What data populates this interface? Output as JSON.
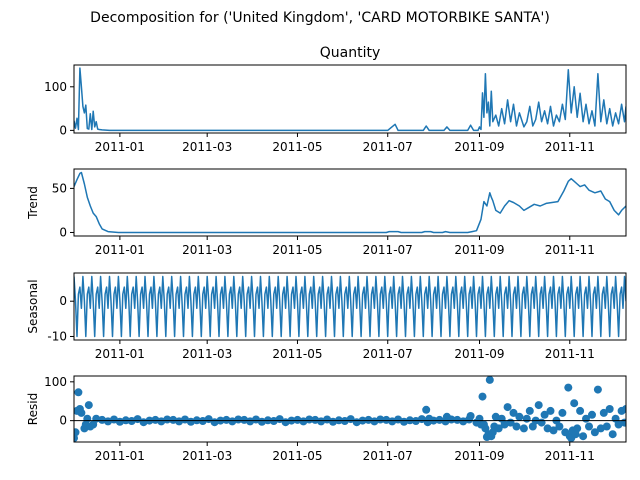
{
  "figure": {
    "suptitle": "Decomposition for ('United Kingdom', 'CARD MOTORBIKE SANTA')"
  },
  "chart_data": [
    {
      "type": "line",
      "title": "Quantity",
      "ylabel": "",
      "xlabel": "",
      "xlim": [
        "2010-12-01",
        "2011-12-09"
      ],
      "ylim": [
        -6,
        150
      ],
      "y_ticks": [
        0,
        100
      ],
      "x_ticks": [
        "2011-01",
        "2011-03",
        "2011-05",
        "2011-07",
        "2011-09",
        "2011-11"
      ],
      "color": "#1f77b4",
      "grid": false,
      "points": [
        [
          "2010-12-01",
          22
        ],
        [
          "2010-12-02",
          5
        ],
        [
          "2010-12-03",
          28
        ],
        [
          "2010-12-04",
          2
        ],
        [
          "2010-12-05",
          143
        ],
        [
          "2010-12-06",
          100
        ],
        [
          "2010-12-07",
          55
        ],
        [
          "2010-12-08",
          40
        ],
        [
          "2010-12-09",
          58
        ],
        [
          "2010-12-10",
          4
        ],
        [
          "2010-12-11",
          3
        ],
        [
          "2010-12-12",
          38
        ],
        [
          "2010-12-13",
          2
        ],
        [
          "2010-12-14",
          44
        ],
        [
          "2010-12-15",
          8
        ],
        [
          "2010-12-16",
          20
        ],
        [
          "2010-12-17",
          3
        ],
        [
          "2010-12-18",
          2
        ],
        [
          "2010-12-20",
          1
        ],
        [
          "2010-12-25",
          0
        ],
        [
          "2011-01-15",
          0
        ],
        [
          "2011-02-15",
          0
        ],
        [
          "2011-03-15",
          0
        ],
        [
          "2011-04-15",
          0
        ],
        [
          "2011-05-15",
          0
        ],
        [
          "2011-06-15",
          0
        ],
        [
          "2011-07-01",
          0
        ],
        [
          "2011-07-06",
          14
        ],
        [
          "2011-07-08",
          0
        ],
        [
          "2011-07-25",
          0
        ],
        [
          "2011-07-27",
          10
        ],
        [
          "2011-07-29",
          0
        ],
        [
          "2011-08-08",
          0
        ],
        [
          "2011-08-10",
          8
        ],
        [
          "2011-08-12",
          0
        ],
        [
          "2011-08-24",
          0
        ],
        [
          "2011-08-26",
          12
        ],
        [
          "2011-08-28",
          0
        ],
        [
          "2011-08-31",
          0
        ],
        [
          "2011-09-01",
          8
        ],
        [
          "2011-09-02",
          2
        ],
        [
          "2011-09-03",
          86
        ],
        [
          "2011-09-04",
          30
        ],
        [
          "2011-09-05",
          130
        ],
        [
          "2011-09-06",
          40
        ],
        [
          "2011-09-07",
          65
        ],
        [
          "2011-09-08",
          10
        ],
        [
          "2011-09-09",
          90
        ],
        [
          "2011-09-10",
          20
        ],
        [
          "2011-09-12",
          35
        ],
        [
          "2011-09-14",
          10
        ],
        [
          "2011-09-16",
          50
        ],
        [
          "2011-09-18",
          15
        ],
        [
          "2011-09-20",
          70
        ],
        [
          "2011-09-22",
          20
        ],
        [
          "2011-09-24",
          60
        ],
        [
          "2011-09-26",
          10
        ],
        [
          "2011-09-28",
          40
        ],
        [
          "2011-10-01",
          8
        ],
        [
          "2011-10-03",
          20
        ],
        [
          "2011-10-05",
          55
        ],
        [
          "2011-10-07",
          10
        ],
        [
          "2011-10-09",
          25
        ],
        [
          "2011-10-11",
          65
        ],
        [
          "2011-10-13",
          20
        ],
        [
          "2011-10-15",
          45
        ],
        [
          "2011-10-17",
          15
        ],
        [
          "2011-10-19",
          55
        ],
        [
          "2011-10-21",
          10
        ],
        [
          "2011-10-23",
          35
        ],
        [
          "2011-10-25",
          20
        ],
        [
          "2011-10-27",
          60
        ],
        [
          "2011-10-29",
          25
        ],
        [
          "2011-10-31",
          139
        ],
        [
          "2011-11-02",
          40
        ],
        [
          "2011-11-04",
          100
        ],
        [
          "2011-11-06",
          30
        ],
        [
          "2011-11-08",
          85
        ],
        [
          "2011-11-10",
          20
        ],
        [
          "2011-11-12",
          60
        ],
        [
          "2011-11-14",
          15
        ],
        [
          "2011-11-16",
          45
        ],
        [
          "2011-11-18",
          10
        ],
        [
          "2011-11-20",
          130
        ],
        [
          "2011-11-22",
          20
        ],
        [
          "2011-11-24",
          70
        ],
        [
          "2011-11-26",
          15
        ],
        [
          "2011-11-28",
          50
        ],
        [
          "2011-11-30",
          10
        ],
        [
          "2011-12-02",
          40
        ],
        [
          "2011-12-04",
          15
        ],
        [
          "2011-12-06",
          60
        ],
        [
          "2011-12-08",
          20
        ],
        [
          "2011-12-09",
          55
        ]
      ]
    },
    {
      "type": "line",
      "title": "",
      "ylabel": "Trend",
      "xlabel": "",
      "xlim": [
        "2010-12-01",
        "2011-12-09"
      ],
      "ylim": [
        -4,
        72
      ],
      "y_ticks": [
        0,
        50
      ],
      "x_ticks": [
        "2011-01",
        "2011-03",
        "2011-05",
        "2011-07",
        "2011-09",
        "2011-11"
      ],
      "color": "#1f77b4",
      "grid": false,
      "points": [
        [
          "2010-12-01",
          52
        ],
        [
          "2010-12-03",
          60
        ],
        [
          "2010-12-05",
          67
        ],
        [
          "2010-12-06",
          68
        ],
        [
          "2010-12-08",
          55
        ],
        [
          "2010-12-10",
          40
        ],
        [
          "2010-12-12",
          30
        ],
        [
          "2010-12-14",
          22
        ],
        [
          "2010-12-16",
          18
        ],
        [
          "2010-12-18",
          10
        ],
        [
          "2010-12-20",
          4
        ],
        [
          "2010-12-24",
          1
        ],
        [
          "2010-12-31",
          0
        ],
        [
          "2011-02-01",
          0
        ],
        [
          "2011-04-01",
          0
        ],
        [
          "2011-06-01",
          0
        ],
        [
          "2011-06-30",
          0
        ],
        [
          "2011-07-02",
          1
        ],
        [
          "2011-07-08",
          1
        ],
        [
          "2011-07-10",
          0
        ],
        [
          "2011-07-24",
          0
        ],
        [
          "2011-07-26",
          1
        ],
        [
          "2011-07-30",
          1
        ],
        [
          "2011-08-01",
          0
        ],
        [
          "2011-08-07",
          0
        ],
        [
          "2011-08-09",
          1
        ],
        [
          "2011-08-12",
          0
        ],
        [
          "2011-08-24",
          0
        ],
        [
          "2011-08-27",
          1
        ],
        [
          "2011-08-30",
          2
        ],
        [
          "2011-09-02",
          15
        ],
        [
          "2011-09-04",
          35
        ],
        [
          "2011-09-06",
          30
        ],
        [
          "2011-09-08",
          45
        ],
        [
          "2011-09-09",
          40
        ],
        [
          "2011-09-10",
          36
        ],
        [
          "2011-09-12",
          25
        ],
        [
          "2011-09-15",
          22
        ],
        [
          "2011-09-18",
          30
        ],
        [
          "2011-09-21",
          36
        ],
        [
          "2011-09-24",
          34
        ],
        [
          "2011-09-28",
          30
        ],
        [
          "2011-10-01",
          25
        ],
        [
          "2011-10-04",
          28
        ],
        [
          "2011-10-08",
          32
        ],
        [
          "2011-10-12",
          30
        ],
        [
          "2011-10-16",
          33
        ],
        [
          "2011-10-20",
          34
        ],
        [
          "2011-10-24",
          35
        ],
        [
          "2011-10-28",
          47
        ],
        [
          "2011-10-31",
          58
        ],
        [
          "2011-11-02",
          61
        ],
        [
          "2011-11-04",
          58
        ],
        [
          "2011-11-06",
          55
        ],
        [
          "2011-11-08",
          52
        ],
        [
          "2011-11-11",
          54
        ],
        [
          "2011-11-14",
          48
        ],
        [
          "2011-11-18",
          45
        ],
        [
          "2011-11-22",
          47
        ],
        [
          "2011-11-25",
          38
        ],
        [
          "2011-11-28",
          35
        ],
        [
          "2011-12-01",
          25
        ],
        [
          "2011-12-04",
          20
        ],
        [
          "2011-12-06",
          25
        ],
        [
          "2011-12-09",
          30
        ]
      ]
    },
    {
      "type": "line",
      "title": "",
      "ylabel": "Seasonal",
      "xlabel": "",
      "xlim": [
        "2010-12-01",
        "2011-12-09"
      ],
      "ylim": [
        -11,
        8
      ],
      "y_ticks": [
        -10,
        0
      ],
      "x_ticks": [
        "2011-01",
        "2011-03",
        "2011-05",
        "2011-07",
        "2011-09",
        "2011-11"
      ],
      "color": "#1f77b4",
      "grid": false,
      "start": "2010-12-01",
      "end": "2011-12-09",
      "period_days": 6,
      "pattern": [
        7,
        0,
        -10,
        2,
        4,
        -2
      ]
    },
    {
      "type": "scatter",
      "title": "",
      "ylabel": "Resid",
      "xlabel": "",
      "xlim": [
        "2010-12-01",
        "2011-12-09"
      ],
      "ylim": [
        -55,
        115
      ],
      "y_ticks": [
        0,
        100
      ],
      "x_ticks": [
        "2011-01",
        "2011-03",
        "2011-05",
        "2011-07",
        "2011-09",
        "2011-11"
      ],
      "color": "#1f77b4",
      "grid": false,
      "zero_line": true,
      "baseline_range": [
        "2010-12-20",
        "2011-08-28"
      ],
      "baseline_step_days": 4,
      "baseline_values": [
        2,
        -2,
        3,
        -3,
        1,
        -1,
        4,
        -4,
        0,
        2,
        -2,
        3
      ],
      "points": [
        [
          "2010-12-01",
          -45
        ],
        [
          "2010-12-02",
          -30
        ],
        [
          "2010-12-03",
          25
        ],
        [
          "2010-12-04",
          73
        ],
        [
          "2010-12-05",
          30
        ],
        [
          "2010-12-06",
          20
        ],
        [
          "2010-12-08",
          -20
        ],
        [
          "2010-12-09",
          -10
        ],
        [
          "2010-12-10",
          5
        ],
        [
          "2010-12-11",
          40
        ],
        [
          "2010-12-12",
          -15
        ],
        [
          "2010-12-14",
          -10
        ],
        [
          "2010-12-16",
          5
        ],
        [
          "2011-07-27",
          28
        ],
        [
          "2011-07-29",
          5
        ],
        [
          "2011-08-10",
          10
        ],
        [
          "2011-08-26",
          12
        ],
        [
          "2011-08-30",
          -5
        ],
        [
          "2011-09-01",
          5
        ],
        [
          "2011-09-02",
          -10
        ],
        [
          "2011-09-03",
          62
        ],
        [
          "2011-09-04",
          -10
        ],
        [
          "2011-09-05",
          -20
        ],
        [
          "2011-09-06",
          -42
        ],
        [
          "2011-09-07",
          -35
        ],
        [
          "2011-09-08",
          105
        ],
        [
          "2011-09-09",
          -40
        ],
        [
          "2011-09-10",
          -30
        ],
        [
          "2011-09-11",
          -15
        ],
        [
          "2011-09-12",
          10
        ],
        [
          "2011-09-14",
          -20
        ],
        [
          "2011-09-16",
          5
        ],
        [
          "2011-09-18",
          -10
        ],
        [
          "2011-09-20",
          35
        ],
        [
          "2011-09-22",
          -5
        ],
        [
          "2011-09-24",
          20
        ],
        [
          "2011-09-26",
          -15
        ],
        [
          "2011-09-28",
          10
        ],
        [
          "2011-10-01",
          -20
        ],
        [
          "2011-10-03",
          5
        ],
        [
          "2011-10-05",
          25
        ],
        [
          "2011-10-07",
          -15
        ],
        [
          "2011-10-09",
          0
        ],
        [
          "2011-10-11",
          40
        ],
        [
          "2011-10-13",
          -5
        ],
        [
          "2011-10-15",
          15
        ],
        [
          "2011-10-17",
          -20
        ],
        [
          "2011-10-19",
          25
        ],
        [
          "2011-10-21",
          -25
        ],
        [
          "2011-10-23",
          0
        ],
        [
          "2011-10-25",
          -15
        ],
        [
          "2011-10-27",
          20
        ],
        [
          "2011-10-29",
          -30
        ],
        [
          "2011-10-31",
          85
        ],
        [
          "2011-11-01",
          -40
        ],
        [
          "2011-11-02",
          -45
        ],
        [
          "2011-11-03",
          -25
        ],
        [
          "2011-11-04",
          45
        ],
        [
          "2011-11-05",
          -35
        ],
        [
          "2011-11-06",
          -20
        ],
        [
          "2011-11-08",
          25
        ],
        [
          "2011-11-10",
          -40
        ],
        [
          "2011-11-12",
          5
        ],
        [
          "2011-11-14",
          -15
        ],
        [
          "2011-11-16",
          15
        ],
        [
          "2011-11-18",
          -30
        ],
        [
          "2011-11-20",
          80
        ],
        [
          "2011-11-22",
          -20
        ],
        [
          "2011-11-24",
          20
        ],
        [
          "2011-11-26",
          -15
        ],
        [
          "2011-11-28",
          30
        ],
        [
          "2011-11-30",
          -35
        ],
        [
          "2011-12-02",
          5
        ],
        [
          "2011-12-04",
          -10
        ],
        [
          "2011-12-06",
          25
        ],
        [
          "2011-12-08",
          -5
        ],
        [
          "2011-12-09",
          30
        ]
      ]
    }
  ]
}
